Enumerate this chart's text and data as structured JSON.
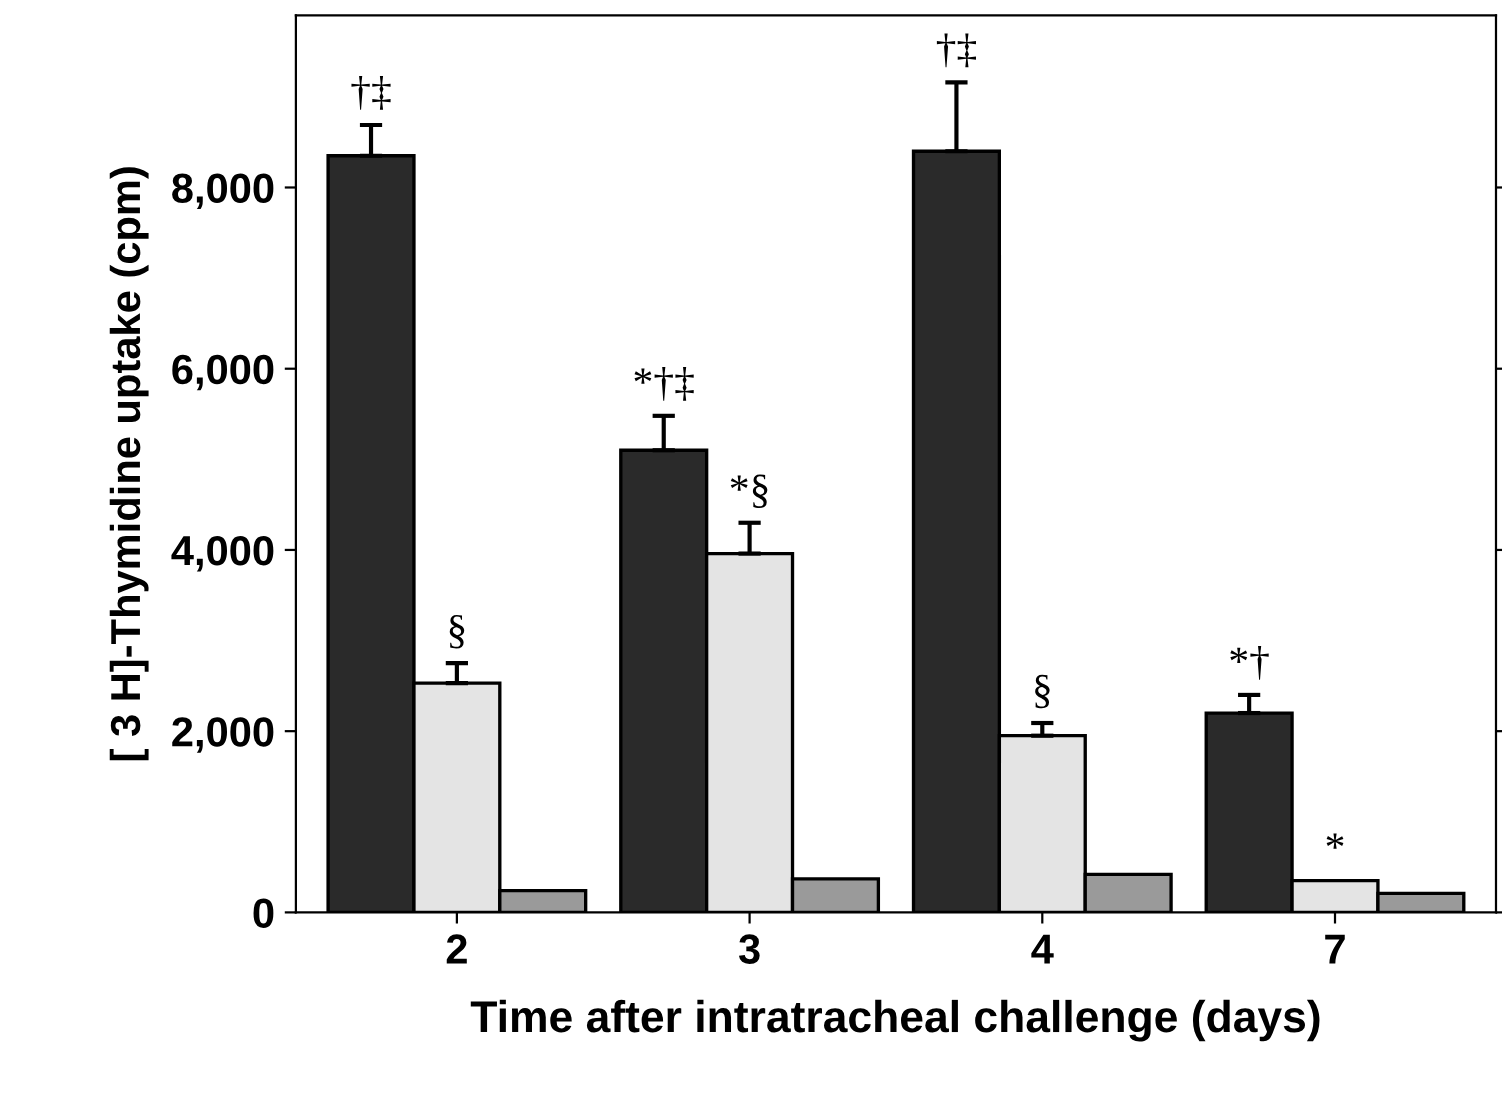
{
  "chart_data": {
    "type": "bar",
    "xlabel": "Time after intratracheal challenge (days)",
    "ylabel": "[ 3 H]-Thymidine uptake (cpm)",
    "categories": [
      "2",
      "3",
      "4",
      "7"
    ],
    "series": [
      {
        "color": "#2a2a2a",
        "values": [
          8350,
          5100,
          8400,
          2200
        ],
        "errors": [
          [
            8350,
            8690
          ],
          [
            5100,
            5480
          ],
          [
            8400,
            9160
          ],
          [
            2200,
            2400
          ]
        ]
      },
      {
        "color": "#e4e4e4",
        "values": [
          2530,
          3960,
          1950,
          350
        ],
        "errors": [
          [
            2530,
            2750
          ],
          [
            3960,
            4300
          ],
          [
            1950,
            2090
          ],
          null
        ]
      },
      {
        "color": "#9a9a9a",
        "values": [
          240,
          370,
          420,
          210
        ]
      }
    ],
    "ylim": [
      0,
      9900
    ],
    "yticks": [
      0,
      {
        "value": 2000,
        "label": "2,000"
      },
      {
        "value": 4000,
        "label": "4,000"
      },
      {
        "value": 6000,
        "label": "6,000"
      },
      {
        "value": 8000,
        "label": "8,000"
      }
    ],
    "annotations": [
      "†‡",
      {
        "text": "§",
        "x": "2",
        "y": 2530
      },
      "*†‡",
      {
        "text": "*§",
        "x": "3",
        "y": 3960
      },
      "†‡",
      {
        "text": "§",
        "x": "4",
        "y": 1950
      },
      "*†",
      {
        "text": "*",
        "x": "7",
        "y": 350
      }
    ],
    "grid": false,
    "legend": false
  }
}
